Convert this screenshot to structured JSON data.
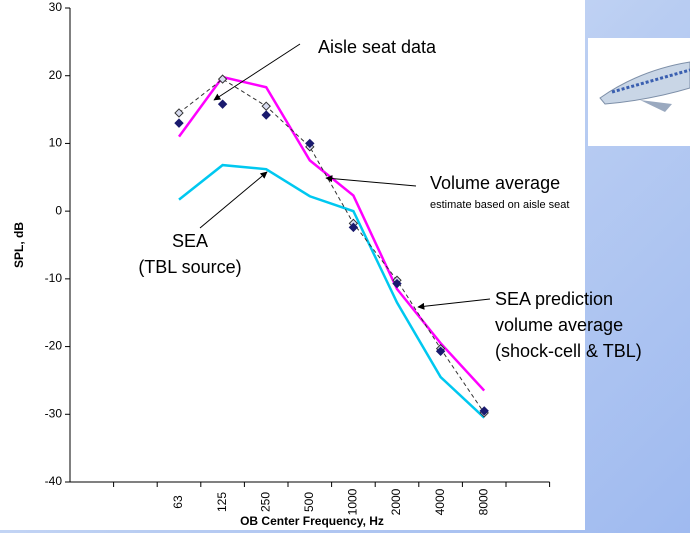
{
  "chart_data": {
    "type": "line",
    "y_label": "SPL, dB",
    "x_label": "OB Center Frequency, Hz",
    "categories": [
      null,
      null,
      "63",
      "125",
      "250",
      "500",
      "1000",
      "2000",
      "4000",
      "8000",
      null
    ],
    "ylim": [
      -40,
      30
    ],
    "yticks": [
      -40,
      -30,
      -20,
      -10,
      0,
      10,
      20,
      30
    ],
    "series": [
      {
        "color": "#ff00ff",
        "style": "solid",
        "marker": "none",
        "values": [
          null,
          null,
          11,
          19.8,
          18.3,
          7.5,
          2.3,
          -11.5,
          -19.5,
          -26.5,
          null
        ]
      },
      {
        "color": "#00c8f0",
        "style": "solid",
        "marker": "none",
        "values": [
          null,
          null,
          1.7,
          6.8,
          6.2,
          2.2,
          0,
          -13.5,
          -24.5,
          -30.5,
          null
        ]
      },
      {
        "color": "#333333",
        "style": "dashed",
        "marker": "open-diamond",
        "values": [
          null,
          null,
          14.5,
          19.5,
          15.5,
          9.5,
          -1.8,
          -10.2,
          -20.3,
          -29.8,
          null
        ]
      },
      {
        "color": "#1a1a6e",
        "style": "none",
        "marker": "diamond",
        "values": [
          null,
          null,
          13,
          15.8,
          14.2,
          10,
          -2.4,
          -10.7,
          -20.7,
          -29.5,
          null
        ]
      }
    ],
    "annotations": [
      "Aisle seat data",
      "Volume average",
      "estimate based on aisle seat",
      "SEA",
      "(TBL source)",
      "SEA prediction",
      "volume average",
      "(shock-cell & TBL)"
    ]
  }
}
